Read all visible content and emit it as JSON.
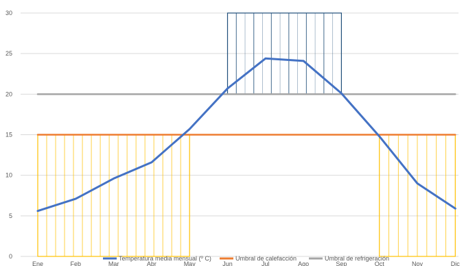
{
  "chart_data": {
    "type": "line",
    "categories": [
      "Ene",
      "Feb",
      "Mar",
      "Abr",
      "May",
      "Jun",
      "Jul",
      "Ago",
      "Sep",
      "Oct",
      "Nov",
      "Dic"
    ],
    "ylim": [
      0,
      30
    ],
    "yticks": [
      "0",
      "5",
      "10",
      "15",
      "20",
      "25",
      "30"
    ],
    "grid": true,
    "legend_position": "bottom",
    "series": [
      {
        "name": "Temperatura media mensual (º C)",
        "color": "#4472c4",
        "values": [
          5.6,
          7.1,
          9.6,
          11.6,
          15.7,
          20.7,
          24.4,
          24.1,
          20.1,
          14.8,
          9.0,
          5.9
        ]
      },
      {
        "name": "Umbral de calefacción",
        "color": "#ed7d31",
        "values": [
          15,
          15,
          15,
          15,
          15,
          15,
          15,
          15,
          15,
          15,
          15,
          15
        ]
      },
      {
        "name": "Umbral de refrigeración",
        "color": "#a5a5a5",
        "values": [
          20,
          20,
          20,
          20,
          20,
          20,
          20,
          20,
          20,
          20,
          20,
          20
        ]
      }
    ],
    "shaded_regions": [
      {
        "kind": "heating",
        "color": "#ffc000",
        "x_from": "Ene",
        "x_to": "May",
        "y_from": 0,
        "y_to": 15
      },
      {
        "kind": "heating",
        "color": "#ffc000",
        "x_from": "Oct",
        "x_to": "Dic",
        "y_from": 0,
        "y_to": 15
      },
      {
        "kind": "cooling",
        "color": "#1f4e79",
        "x_from": "Jun",
        "x_to": "Sep",
        "y_from": 20,
        "y_to": 30
      }
    ]
  }
}
